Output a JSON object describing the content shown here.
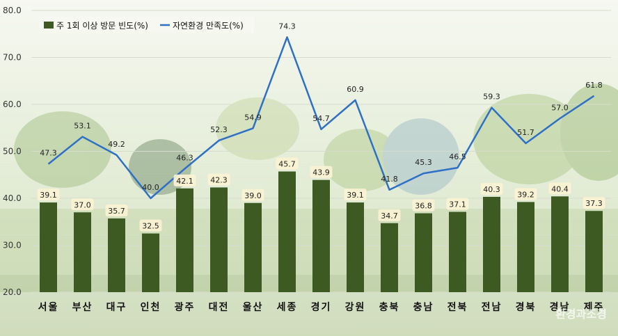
{
  "chart_data": {
    "type": "bar",
    "categories": [
      "서울",
      "부산",
      "대구",
      "인천",
      "광주",
      "대전",
      "울산",
      "세종",
      "경기",
      "강원",
      "충북",
      "충남",
      "전북",
      "전남",
      "경북",
      "경남",
      "제주"
    ],
    "series": [
      {
        "name": "주 1회 이상 방문 빈도(%)",
        "type": "bar",
        "color": "#3d5a22",
        "values": [
          39.1,
          37.0,
          35.7,
          32.5,
          42.1,
          42.3,
          39.0,
          45.7,
          43.9,
          39.1,
          34.7,
          36.8,
          37.1,
          40.3,
          39.2,
          40.4,
          37.3
        ]
      },
      {
        "name": "자연환경 만족도(%)",
        "type": "line",
        "color": "#2e6fc7",
        "values": [
          47.3,
          53.1,
          49.2,
          40.0,
          46.3,
          52.3,
          54.9,
          74.3,
          54.7,
          60.9,
          41.8,
          45.3,
          46.5,
          59.3,
          51.7,
          57.0,
          61.8
        ]
      }
    ],
    "ylim": [
      20,
      80
    ],
    "yticks": [
      "20.0",
      "30.0",
      "40.0",
      "50.0",
      "60.0",
      "70.0",
      "80.0"
    ],
    "grid": true,
    "legend": "top-left"
  },
  "watermark": "환경과조경"
}
